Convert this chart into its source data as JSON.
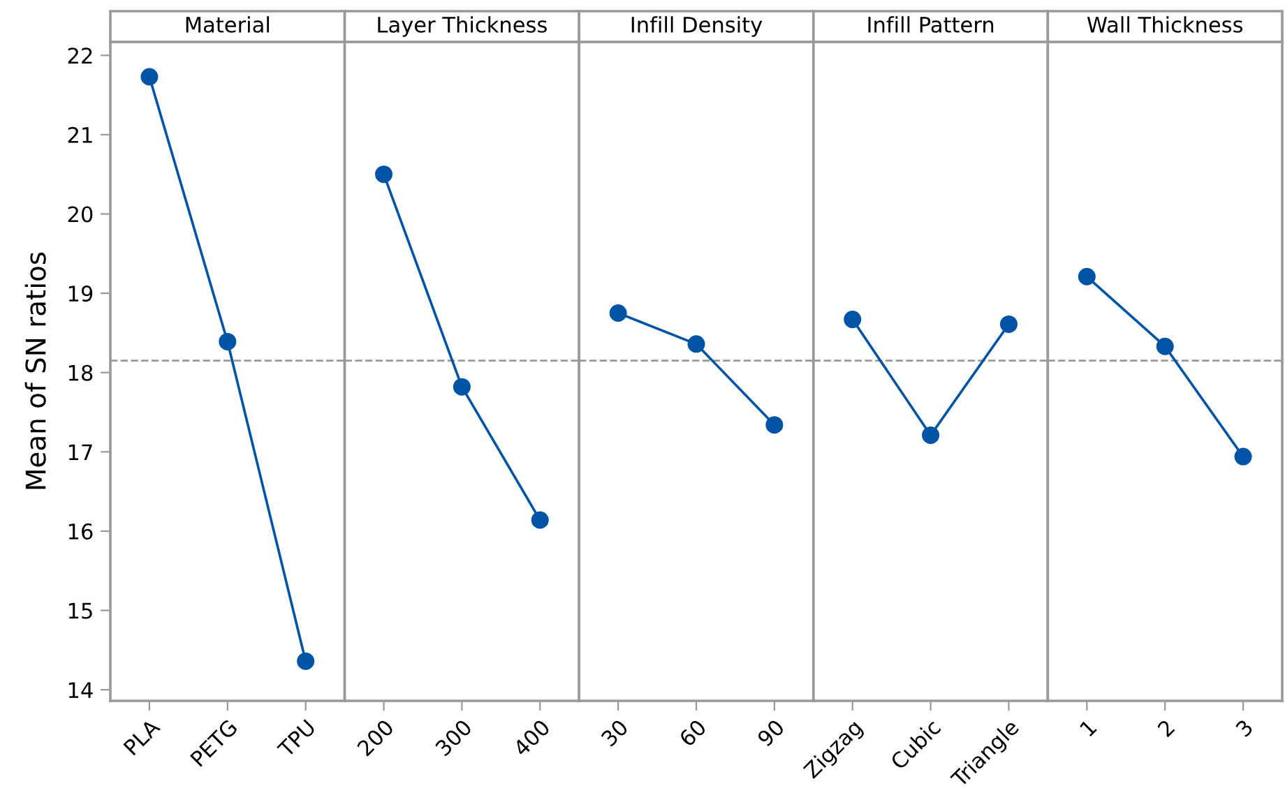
{
  "chart_data": [
    {
      "type": "line",
      "title": "Material",
      "ylabel": "Mean of SN ratios",
      "categories": [
        "PLA",
        "PETG",
        "TPU"
      ],
      "series": [
        {
          "color": "#0054a6",
          "values": [
            21.73,
            18.39,
            14.36
          ]
        }
      ],
      "ylim": [
        13.86,
        22.17
      ],
      "yticks": [
        14,
        15,
        16,
        17,
        18,
        19,
        20,
        21,
        22
      ],
      "marker": "circle",
      "line_style": "solid",
      "ref_lines": [
        {
          "axis": "y",
          "value": 18.15,
          "color": "#999999",
          "line_style": "dashed"
        }
      ]
    },
    {
      "type": "line",
      "title": "Layer Thickness",
      "categories": [
        "200",
        "300",
        "400"
      ],
      "series": [
        {
          "color": "#0054a6",
          "values": [
            20.5,
            17.82,
            16.14
          ]
        }
      ],
      "ylim": [
        13.86,
        22.17
      ],
      "tick_labels": "x",
      "marker": "circle",
      "line_style": "solid",
      "ref_lines": [
        {
          "axis": "y",
          "value": 18.15,
          "color": "#999999",
          "line_style": "dashed"
        }
      ]
    },
    {
      "type": "line",
      "title": "Infill Density",
      "categories": [
        "30",
        "60",
        "90"
      ],
      "series": [
        {
          "color": "#0054a6",
          "values": [
            18.75,
            18.36,
            17.34
          ]
        }
      ],
      "ylim": [
        13.86,
        22.17
      ],
      "tick_labels": "x",
      "marker": "circle",
      "line_style": "solid",
      "ref_lines": [
        {
          "axis": "y",
          "value": 18.15,
          "color": "#999999",
          "line_style": "dashed"
        }
      ]
    },
    {
      "type": "line",
      "title": "Infill Pattern",
      "categories": [
        "Zigzag",
        "Cubic",
        "Triangle"
      ],
      "series": [
        {
          "color": "#0054a6",
          "values": [
            18.67,
            17.21,
            18.61
          ]
        }
      ],
      "ylim": [
        13.86,
        22.17
      ],
      "tick_labels": "x",
      "marker": "circle",
      "line_style": "solid",
      "ref_lines": [
        {
          "axis": "y",
          "value": 18.15,
          "color": "#999999",
          "line_style": "dashed"
        }
      ]
    },
    {
      "type": "line",
      "title": "Wall Thickness",
      "categories": [
        "1",
        "2",
        "3"
      ],
      "series": [
        {
          "color": "#0054a6",
          "values": [
            19.21,
            18.33,
            16.94
          ]
        }
      ],
      "ylim": [
        13.86,
        22.17
      ],
      "tick_labels": "x",
      "marker": "circle",
      "line_style": "solid",
      "ref_lines": [
        {
          "axis": "y",
          "value": 18.15,
          "color": "#999999",
          "line_style": "dashed"
        }
      ]
    }
  ]
}
